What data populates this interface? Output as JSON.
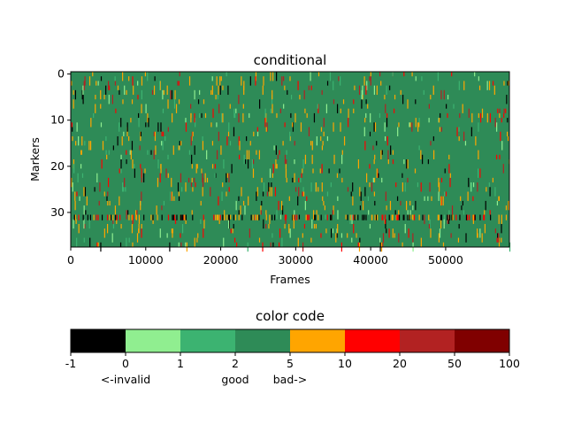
{
  "chart_data": [
    {
      "type": "heatmap",
      "title": "conditional",
      "xlabel": "Frames",
      "ylabel": "Markers",
      "xlim": [
        0,
        58500
      ],
      "ylim": [
        0,
        38
      ],
      "x_ticks": [
        "0",
        "10000",
        "20000",
        "30000",
        "40000",
        "50000"
      ],
      "y_ticks": [
        "0",
        "10",
        "20",
        "30"
      ],
      "background_color": "#2e8b57",
      "category_colors": {
        "invalid": "#000000",
        "0-1": "#90ee90",
        "1-2": "#3cb371",
        "2-5": "#2e8b57",
        "5-10": "#ffa500",
        "10-20": "#ff0000",
        "20-50": "#b22222",
        "50-100": "#800000"
      },
      "dense_rows": [
        31
      ],
      "note_rows_with_events": [
        2,
        5,
        10,
        15,
        20,
        22,
        24,
        31,
        33
      ]
    },
    {
      "type": "heatmap",
      "title": "color code",
      "boundaries": [
        "-1",
        "0",
        "1",
        "2",
        "5",
        "10",
        "20",
        "50",
        "100"
      ],
      "colors": [
        "#000000",
        "#90ee90",
        "#3cb371",
        "#2e8b57",
        "#ffa500",
        "#ff0000",
        "#b22222",
        "#800000"
      ],
      "annotations": [
        {
          "text": "<-invalid",
          "between": [
            "0"
          ]
        },
        {
          "text": "good",
          "between": [
            "2"
          ]
        },
        {
          "text": "bad->",
          "between": [
            "5"
          ]
        }
      ]
    }
  ]
}
